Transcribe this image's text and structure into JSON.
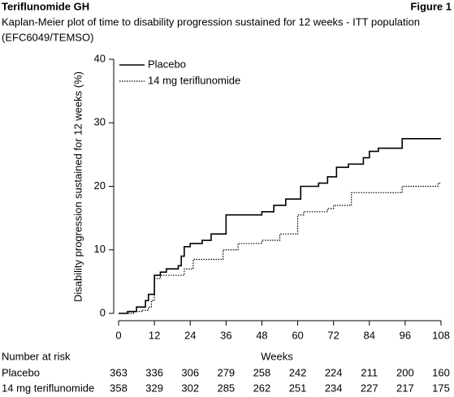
{
  "header": {
    "left": "Teriflunomide GH",
    "right": "Figure 1"
  },
  "chart_data": {
    "type": "step",
    "title": [
      "Kaplan-Meier plot of time to disability progression sustained for 12 weeks - ITT population",
      "(EFC6049/TEMSO)"
    ],
    "x_label": "Weeks",
    "y_label": "Disability progression sustained for 12 weeks (%)",
    "xlim": [
      0,
      108
    ],
    "xticks": [
      0,
      12,
      24,
      36,
      48,
      60,
      72,
      84,
      96,
      108
    ],
    "ylim": [
      0,
      40
    ],
    "yticks": [
      0,
      10,
      20,
      30,
      40
    ],
    "legend": "top-left",
    "series": [
      {
        "name": "Placebo",
        "color": "#000000",
        "dash": "solid",
        "x": [
          0,
          3,
          6,
          9,
          10,
          12,
          14,
          16,
          20,
          21,
          22,
          24,
          28,
          31,
          36,
          48,
          52,
          56,
          61,
          67,
          70,
          73,
          77,
          82,
          84,
          87,
          95,
          108
        ],
        "values": [
          0,
          0.3,
          1,
          2,
          3,
          6,
          6.5,
          7,
          7.5,
          9,
          10.5,
          11,
          11.5,
          12.5,
          15.5,
          16,
          17,
          18,
          20,
          20.5,
          21.5,
          23,
          23.5,
          24.5,
          25.5,
          26,
          27.5,
          27.5
        ]
      },
      {
        "name": "14 mg teriflunomide",
        "color": "#000000",
        "dash": "dotted",
        "x": [
          0,
          5,
          8,
          10,
          11,
          12,
          14,
          22,
          25,
          35,
          40,
          48,
          54,
          60,
          62,
          70,
          72,
          78,
          95,
          107,
          108
        ],
        "values": [
          0,
          0.3,
          0.5,
          1,
          2,
          5.5,
          6,
          7,
          8.5,
          10,
          11,
          11.5,
          12.5,
          15.5,
          16,
          16.5,
          17,
          19,
          20,
          20.5,
          20.5
        ]
      }
    ],
    "risk_table": {
      "title": "Number at risk",
      "rows": [
        {
          "name": "Placebo",
          "values": [
            363,
            336,
            306,
            279,
            258,
            242,
            224,
            211,
            200,
            160
          ]
        },
        {
          "name": "14 mg teriflunomide",
          "values": [
            358,
            329,
            302,
            285,
            262,
            251,
            234,
            227,
            217,
            175
          ]
        }
      ]
    }
  }
}
